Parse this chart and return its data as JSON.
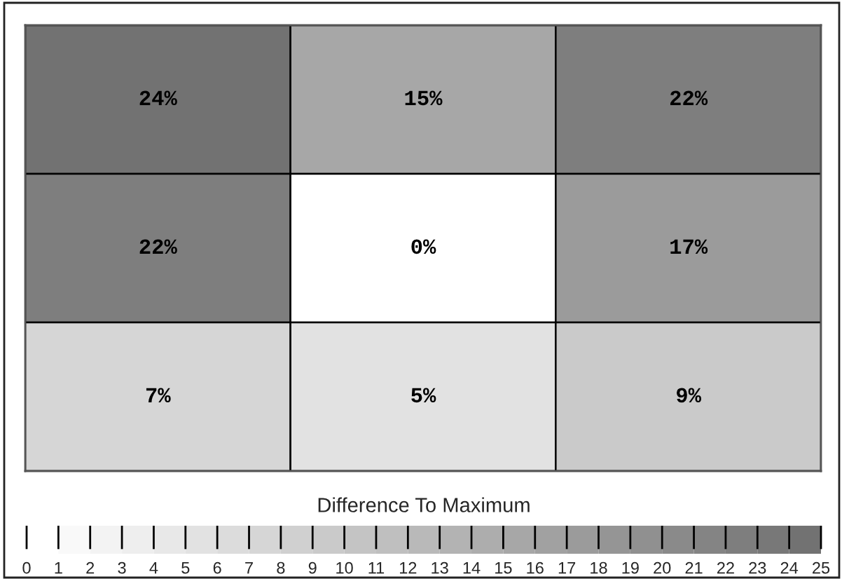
{
  "chart_data": {
    "type": "heatmap",
    "categories": [
      null,
      null,
      null
    ],
    "y_categories": [
      null,
      null,
      null
    ],
    "cells": [
      [
        24,
        15,
        22
      ],
      [
        22,
        0,
        17
      ],
      [
        7,
        5,
        9
      ]
    ],
    "cell_labels": [
      [
        "24%",
        "15%",
        "22%"
      ],
      [
        "22%",
        "0%",
        "17%"
      ],
      [
        "7%",
        "5%",
        "9%"
      ]
    ],
    "clabel": "Difference To Maximum",
    "clim": [
      0,
      25
    ],
    "cticks": [
      0,
      1,
      2,
      3,
      4,
      5,
      6,
      7,
      8,
      9,
      10,
      11,
      12,
      13,
      14,
      15,
      16,
      17,
      18,
      19,
      20,
      21,
      22,
      23,
      24,
      25
    ]
  }
}
